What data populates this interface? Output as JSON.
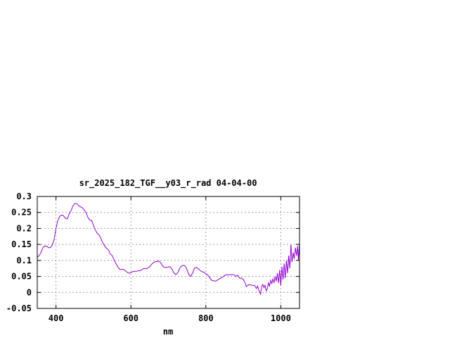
{
  "chart_data": {
    "type": "line",
    "title": "sr_2025_182_TGF__y03_r_rad 04-04-00",
    "xlabel": "nm",
    "ylabel": "",
    "xlim": [
      350,
      1050
    ],
    "ylim": [
      -0.05,
      0.3
    ],
    "x_ticks": [
      400,
      600,
      800,
      1000
    ],
    "x_tick_labels": [
      "400",
      "600",
      "800",
      "1000"
    ],
    "y_ticks": [
      -0.05,
      0,
      0.05,
      0.1,
      0.15,
      0.2,
      0.25,
      0.3
    ],
    "y_tick_labels": [
      "-0.05",
      "0",
      "0.05",
      "0.1",
      "0.15",
      "0.2",
      "0.25",
      "0.3"
    ],
    "grid": true,
    "series": [
      {
        "color": "#9400d3",
        "points": [
          [
            350,
            0.11
          ],
          [
            355,
            0.115
          ],
          [
            360,
            0.125
          ],
          [
            365,
            0.14
          ],
          [
            370,
            0.145
          ],
          [
            375,
            0.145
          ],
          [
            380,
            0.14
          ],
          [
            385,
            0.14
          ],
          [
            390,
            0.148
          ],
          [
            395,
            0.165
          ],
          [
            400,
            0.2
          ],
          [
            405,
            0.225
          ],
          [
            410,
            0.238
          ],
          [
            415,
            0.242
          ],
          [
            420,
            0.24
          ],
          [
            425,
            0.232
          ],
          [
            430,
            0.23
          ],
          [
            435,
            0.245
          ],
          [
            440,
            0.255
          ],
          [
            445,
            0.27
          ],
          [
            450,
            0.278
          ],
          [
            455,
            0.278
          ],
          [
            460,
            0.272
          ],
          [
            465,
            0.268
          ],
          [
            470,
            0.265
          ],
          [
            475,
            0.258
          ],
          [
            480,
            0.25
          ],
          [
            485,
            0.235
          ],
          [
            490,
            0.226
          ],
          [
            495,
            0.225
          ],
          [
            500,
            0.21
          ],
          [
            505,
            0.195
          ],
          [
            510,
            0.185
          ],
          [
            515,
            0.18
          ],
          [
            520,
            0.168
          ],
          [
            525,
            0.155
          ],
          [
            530,
            0.145
          ],
          [
            535,
            0.138
          ],
          [
            540,
            0.133
          ],
          [
            545,
            0.12
          ],
          [
            550,
            0.115
          ],
          [
            555,
            0.102
          ],
          [
            560,
            0.09
          ],
          [
            565,
            0.08
          ],
          [
            570,
            0.072
          ],
          [
            575,
            0.072
          ],
          [
            580,
            0.072
          ],
          [
            585,
            0.068
          ],
          [
            590,
            0.063
          ],
          [
            595,
            0.06
          ],
          [
            600,
            0.062
          ],
          [
            605,
            0.065
          ],
          [
            610,
            0.066
          ],
          [
            615,
            0.066
          ],
          [
            620,
            0.068
          ],
          [
            625,
            0.068
          ],
          [
            630,
            0.072
          ],
          [
            635,
            0.075
          ],
          [
            640,
            0.074
          ],
          [
            645,
            0.076
          ],
          [
            650,
            0.08
          ],
          [
            655,
            0.088
          ],
          [
            660,
            0.093
          ],
          [
            665,
            0.096
          ],
          [
            670,
            0.097
          ],
          [
            675,
            0.098
          ],
          [
            680,
            0.092
          ],
          [
            685,
            0.082
          ],
          [
            690,
            0.078
          ],
          [
            695,
            0.078
          ],
          [
            700,
            0.08
          ],
          [
            705,
            0.08
          ],
          [
            710,
            0.072
          ],
          [
            715,
            0.06
          ],
          [
            720,
            0.056
          ],
          [
            725,
            0.062
          ],
          [
            730,
            0.075
          ],
          [
            735,
            0.082
          ],
          [
            740,
            0.085
          ],
          [
            745,
            0.082
          ],
          [
            750,
            0.07
          ],
          [
            755,
            0.055
          ],
          [
            760,
            0.05
          ],
          [
            765,
            0.062
          ],
          [
            770,
            0.077
          ],
          [
            775,
            0.078
          ],
          [
            780,
            0.074
          ],
          [
            785,
            0.068
          ],
          [
            790,
            0.065
          ],
          [
            795,
            0.063
          ],
          [
            800,
            0.058
          ],
          [
            805,
            0.055
          ],
          [
            810,
            0.047
          ],
          [
            815,
            0.038
          ],
          [
            820,
            0.037
          ],
          [
            825,
            0.035
          ],
          [
            830,
            0.038
          ],
          [
            835,
            0.042
          ],
          [
            840,
            0.045
          ],
          [
            845,
            0.048
          ],
          [
            850,
            0.053
          ],
          [
            855,
            0.056
          ],
          [
            860,
            0.055
          ],
          [
            865,
            0.055
          ],
          [
            870,
            0.056
          ],
          [
            875,
            0.055
          ],
          [
            880,
            0.05
          ],
          [
            885,
            0.054
          ],
          [
            890,
            0.045
          ],
          [
            895,
            0.045
          ],
          [
            900,
            0.04
          ],
          [
            905,
            0.03
          ],
          [
            908,
            0.018
          ],
          [
            912,
            0.022
          ],
          [
            915,
            0.024
          ],
          [
            920,
            0.023
          ],
          [
            925,
            0.022
          ],
          [
            930,
            0.022
          ],
          [
            935,
            0.012
          ],
          [
            938,
            0.02
          ],
          [
            942,
            0.005
          ],
          [
            946,
            -0.005
          ],
          [
            949,
            0.018
          ],
          [
            952,
            0.025
          ],
          [
            955,
            0.015
          ],
          [
            958,
            0.022
          ],
          [
            961,
            0.005
          ],
          [
            964,
            0.012
          ],
          [
            967,
            0.03
          ],
          [
            970,
            0.02
          ],
          [
            973,
            0.038
          ],
          [
            976,
            0.028
          ],
          [
            979,
            0.042
          ],
          [
            982,
            0.03
          ],
          [
            985,
            0.05
          ],
          [
            988,
            0.035
          ],
          [
            991,
            0.06
          ],
          [
            994,
            0.03
          ],
          [
            997,
            0.07
          ],
          [
            1000,
            0.022
          ],
          [
            1003,
            0.08
          ],
          [
            1006,
            0.04
          ],
          [
            1009,
            0.09
          ],
          [
            1012,
            0.045
          ],
          [
            1015,
            0.1
          ],
          [
            1018,
            0.06
          ],
          [
            1021,
            0.115
          ],
          [
            1024,
            0.075
          ],
          [
            1027,
            0.15
          ],
          [
            1030,
            0.095
          ],
          [
            1033,
            0.125
          ],
          [
            1036,
            0.105
          ],
          [
            1039,
            0.14
          ],
          [
            1042,
            0.115
          ],
          [
            1045,
            0.145
          ],
          [
            1047,
            0.1
          ],
          [
            1050,
            0.155
          ]
        ]
      }
    ]
  }
}
